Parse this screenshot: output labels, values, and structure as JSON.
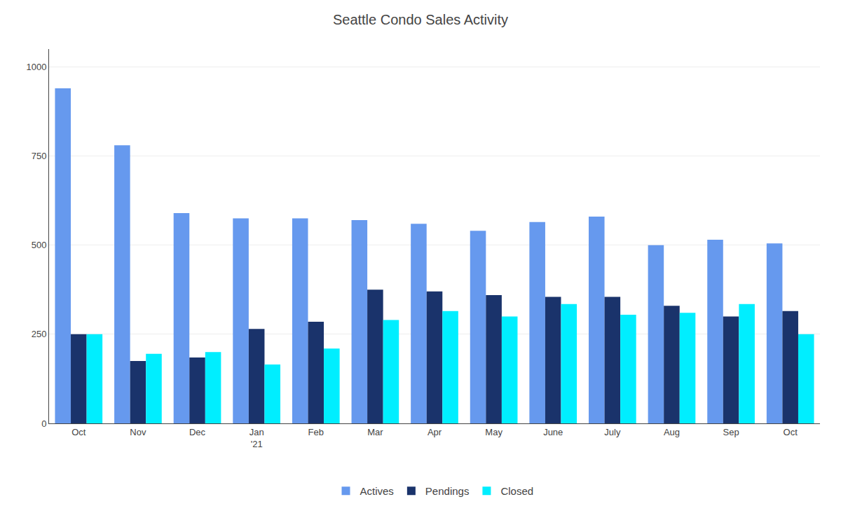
{
  "chart_data": {
    "type": "bar",
    "title": "Seattle Condo Sales Activity",
    "categories": [
      "Oct",
      "Nov",
      "Dec",
      "Jan\n'21",
      "Feb",
      "Mar",
      "Apr",
      "May",
      "June",
      "July",
      "Aug",
      "Sep",
      "Oct"
    ],
    "series": [
      {
        "name": "Actives",
        "color": "#6699ee",
        "values": [
          940,
          780,
          590,
          575,
          575,
          570,
          560,
          540,
          565,
          580,
          500,
          515,
          505
        ]
      },
      {
        "name": "Pendings",
        "color": "#1a336b",
        "values": [
          250,
          175,
          185,
          265,
          285,
          375,
          370,
          360,
          355,
          355,
          330,
          300,
          315
        ]
      },
      {
        "name": "Closed",
        "color": "#00eeff",
        "values": [
          250,
          195,
          200,
          165,
          210,
          290,
          315,
          300,
          335,
          305,
          310,
          335,
          250
        ]
      }
    ],
    "ylim": [
      0,
      1050
    ],
    "yticks": [
      0,
      250,
      500,
      750,
      1000
    ],
    "grid": true,
    "legend": "bottom"
  }
}
